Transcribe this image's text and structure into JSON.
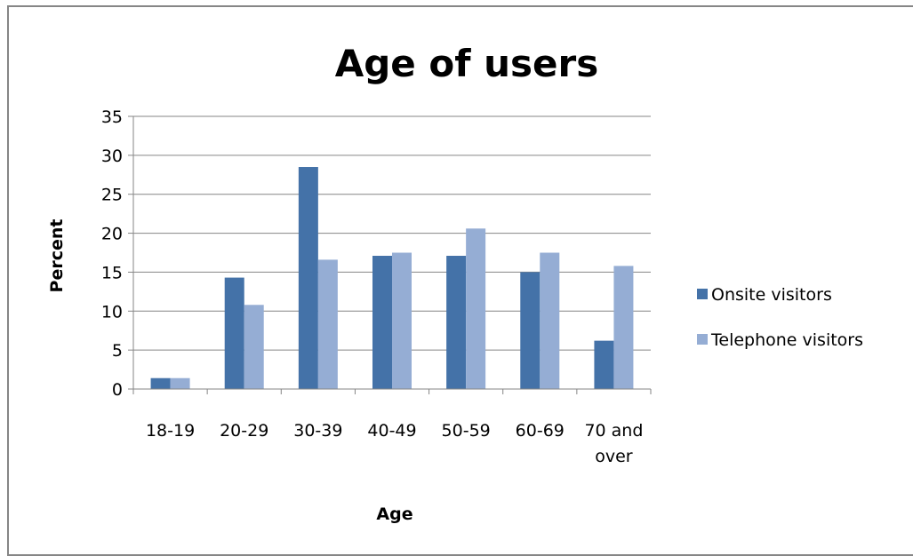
{
  "chart_data": {
    "type": "bar",
    "title": "Age of users",
    "xlabel": "Age",
    "ylabel": "Percent",
    "categories": [
      [
        "18-19"
      ],
      [
        "20-29"
      ],
      [
        "30-39"
      ],
      [
        "40-49"
      ],
      [
        "50-59"
      ],
      [
        "60-69"
      ],
      [
        "70 and",
        "over"
      ]
    ],
    "series": [
      {
        "name": "Onsite visitors",
        "color": "#4472a8",
        "values": [
          1.4,
          14.3,
          28.5,
          17.1,
          17.1,
          15.0,
          6.2
        ]
      },
      {
        "name": "Telephone visitors",
        "color": "#95add4",
        "values": [
          1.4,
          10.8,
          16.6,
          17.5,
          20.6,
          17.5,
          15.8
        ]
      }
    ],
    "yticks": [
      "0",
      "5",
      "10",
      "15",
      "20",
      "25",
      "30",
      "35"
    ],
    "ylim": [
      0,
      35
    ],
    "grid": true,
    "legend": "right",
    "gridline_color": "#868686"
  }
}
